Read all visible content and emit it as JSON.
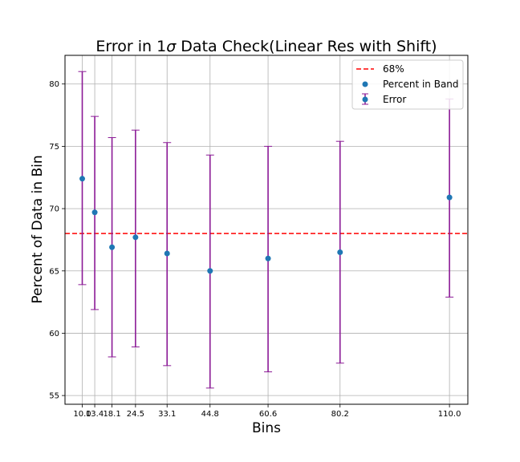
{
  "chart_data": {
    "type": "scatter",
    "title": "Error in 1σ Data Check(Linear Res with Shift)",
    "title_parts": {
      "before": "Error in 1",
      "sigma": "σ",
      "after": " Data Check(Linear Res with Shift)"
    },
    "xlabel": "Bins",
    "ylabel": "Percent of Data in Bin",
    "x": [
      10.0,
      13.4,
      18.1,
      24.5,
      33.1,
      44.8,
      60.6,
      80.2,
      110.0
    ],
    "x_tick_labels": [
      "10.0",
      "13.4",
      "18.1",
      "24.5",
      "33.1",
      "44.8",
      "60.6",
      "80.2",
      "110.0"
    ],
    "xlim": [
      5.3,
      115.0
    ],
    "ylim": [
      54.3,
      82.3
    ],
    "y_ticks": [
      55,
      60,
      65,
      70,
      75,
      80
    ],
    "series": [
      {
        "name": "Percent in Band",
        "values": [
          72.4,
          69.7,
          66.9,
          67.7,
          66.4,
          65.0,
          66.0,
          66.5,
          70.9
        ],
        "color": "#1f77b4"
      },
      {
        "name": "Error",
        "lower": [
          63.9,
          61.9,
          58.1,
          58.9,
          57.4,
          55.6,
          56.9,
          57.6,
          62.9
        ],
        "upper": [
          81.0,
          77.4,
          75.7,
          76.3,
          75.3,
          74.3,
          75.0,
          75.4,
          78.8
        ],
        "color": "#8b1a96"
      },
      {
        "name": "68%",
        "value": 68,
        "style": "dashed",
        "color": "#ff0000"
      }
    ],
    "grid": true,
    "legend_position": "top-right"
  }
}
